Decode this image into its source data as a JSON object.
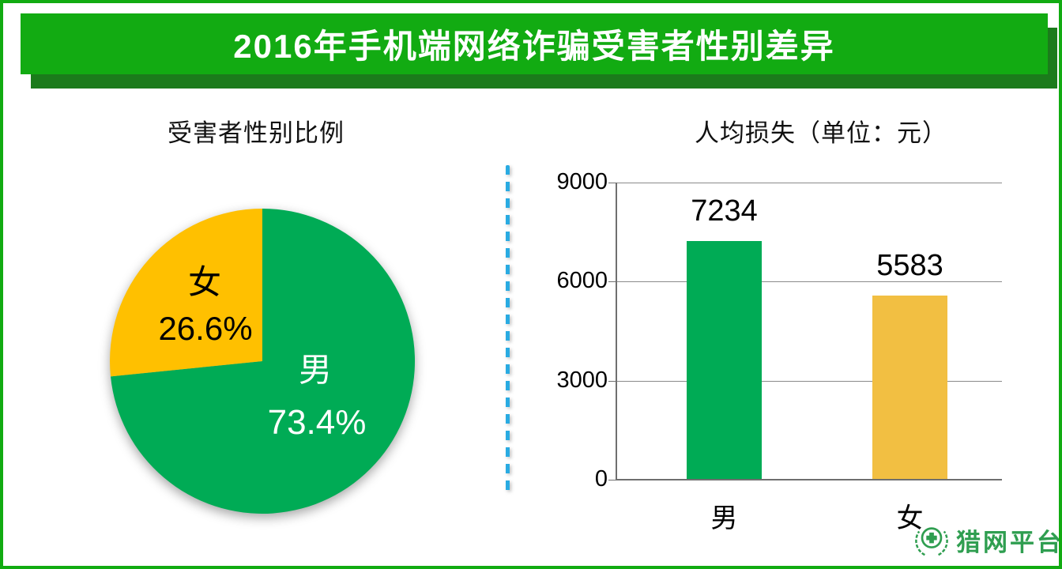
{
  "page": {
    "background": "#FFFFFF",
    "border_color": "#12AB12"
  },
  "header": {
    "title": "2016年手机端网络诈骗受害者性别差异",
    "banner_color": "#12AB12",
    "shadow_color": "#1B7B1B",
    "text_color": "#FFFFFF"
  },
  "pie_section": {
    "title": "受害者性别比例"
  },
  "bar_section": {
    "title": "人均损失（单位：元）"
  },
  "divider": {
    "color": "#29ABE2"
  },
  "logo": {
    "text": "猎网平台",
    "color": "#2F9E50",
    "icon": "cross-in-wreath-emblem"
  },
  "chart_data": [
    {
      "type": "pie",
      "title": "受害者性别比例",
      "labels": [
        "男",
        "女"
      ],
      "values": [
        73.4,
        26.6
      ],
      "unit": "%",
      "colors": [
        "#00AB55",
        "#FFC000"
      ],
      "label_text_colors": [
        "#FFFFFF",
        "#000000"
      ],
      "start_angle": "12-oclock-clockwise"
    },
    {
      "type": "bar",
      "title": "人均损失（单位：元）",
      "categories": [
        "男",
        "女"
      ],
      "values": [
        7234,
        5583
      ],
      "colors": [
        "#00AB55",
        "#F2BF42"
      ],
      "ylim": [
        0,
        9000
      ],
      "yticks": [
        0,
        3000,
        6000,
        9000
      ],
      "grid": true,
      "legend": false,
      "xlabel": "",
      "ylabel": ""
    }
  ]
}
